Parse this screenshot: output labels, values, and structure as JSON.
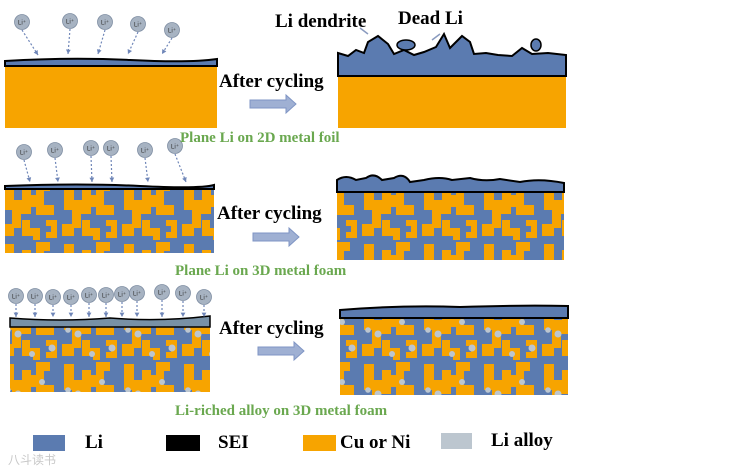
{
  "colors": {
    "li": "#5b7bb0",
    "sei": "#000000",
    "cu_ni": "#f7a400",
    "li_alloy": "#bcc6cf",
    "caption": "#6aa84f",
    "arrow": "#9fb0d3",
    "ion": "#a7b3c2"
  },
  "ion_label": "Li⁺",
  "annotations": {
    "dendrite": "Li dendrite",
    "dead": "Dead Li"
  },
  "rows": [
    {
      "after_label": "After cycling",
      "caption": "Plane Li on 2D metal foil"
    },
    {
      "after_label": "After cycling",
      "caption": "Plane Li on 3D metal foam"
    },
    {
      "after_label": "After cycling",
      "caption": "Li-riched alloy on 3D metal foam"
    }
  ],
  "legend": [
    {
      "label": "Li",
      "color": "#5b7bb0"
    },
    {
      "label": "SEI",
      "color": "#000000"
    },
    {
      "label": "Cu or Ni",
      "color": "#f7a400"
    },
    {
      "label": "Li alloy",
      "color": "#bcc6cf"
    }
  ],
  "watermark": "八斗读书"
}
